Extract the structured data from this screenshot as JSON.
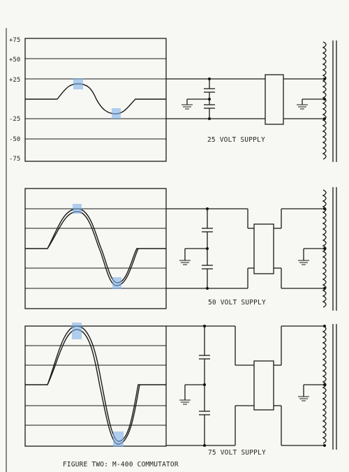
{
  "figure": {
    "caption": "FIGURE TWO: M-400 COMMUTATOR"
  },
  "panel_top": {
    "y_axis_labels": [
      "+75",
      "+50",
      "+25",
      "-25",
      "-50",
      "-75"
    ],
    "supply_label": "25 VOLT SUPPLY"
  },
  "panel_mid": {
    "supply_label": "50 VOLT SUPPLY"
  },
  "panel_bottom": {
    "supply_label": "75 VOLT SUPPLY"
  },
  "colors": {
    "highlight": "#7fb0ea",
    "ink": "#1a1a1a",
    "paper": "#f7f7f3"
  }
}
